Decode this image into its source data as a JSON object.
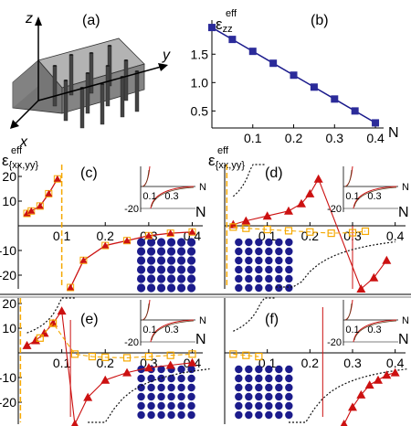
{
  "colors": {
    "axis": "#000000",
    "series_blue": "#1a1a8c",
    "marker_blue": "#2b2b9a",
    "series_red": "#cc1111",
    "series_orange": "#f5a800",
    "dots": "#1c1c8c",
    "block": "#7a7a7a"
  },
  "panel_a": {
    "label": "(a)",
    "axes": {
      "x": "x",
      "y": "y",
      "z": "z"
    }
  },
  "chart_data": [
    {
      "panel": "(b)",
      "type": "line",
      "ylabel_main": "ε",
      "ylabel_sub": "zz",
      "ylabel_sup": "eff",
      "xlabel": "N",
      "x": [
        0.0,
        0.05,
        0.1,
        0.15,
        0.2,
        0.25,
        0.3,
        0.35,
        0.4
      ],
      "y": [
        1.97,
        1.76,
        1.55,
        1.34,
        1.13,
        0.92,
        0.71,
        0.5,
        0.29
      ],
      "xticks": [
        "0.1",
        "0.2",
        "0.3",
        "0.4"
      ],
      "yticks": [
        "0.5",
        "1.0",
        "1.5"
      ],
      "xlim": [
        0,
        0.42
      ],
      "ylim": [
        0.2,
        2.1
      ]
    },
    {
      "panel": "(c)",
      "type": "line",
      "ylabel_main": "ε",
      "ylabel_sub": "{xx,yy}",
      "ylabel_sup": "eff",
      "xlabel": "N",
      "xticks": [
        "0.1",
        "0.2",
        "0.3",
        "0.4"
      ],
      "yticks": [
        "20",
        "10",
        "-10",
        "-20"
      ],
      "resonance": 0.1,
      "points": [
        [
          0.02,
          5
        ],
        [
          0.03,
          6
        ],
        [
          0.05,
          8
        ],
        [
          0.07,
          13
        ],
        [
          0.09,
          19
        ],
        [
          0.12,
          -25
        ],
        [
          0.15,
          -14
        ],
        [
          0.2,
          -8
        ],
        [
          0.25,
          -6
        ],
        [
          0.3,
          -4
        ],
        [
          0.35,
          -3
        ],
        [
          0.4,
          -2.5
        ]
      ],
      "inset_xticks": [
        "0.1",
        "0.3"
      ],
      "inset_ytick": "-20",
      "inset_xlabel": "N"
    },
    {
      "panel": "(d)",
      "type": "line",
      "ylabel_main": "ε",
      "ylabel_sub": "{xx,yy}",
      "ylabel_sup": "eff",
      "xlabel": "N",
      "xticks": [
        "0.1",
        "0.2",
        "0.3",
        "0.4"
      ],
      "red_points": [
        [
          0.02,
          0.5
        ],
        [
          0.05,
          2
        ],
        [
          0.1,
          4
        ],
        [
          0.15,
          6
        ],
        [
          0.18,
          9
        ],
        [
          0.2,
          13
        ],
        [
          0.22,
          19
        ],
        [
          0.32,
          -29
        ],
        [
          0.35,
          -21
        ],
        [
          0.38,
          -14
        ]
      ],
      "orange_points": [
        [
          0.02,
          -0.5
        ],
        [
          0.05,
          -1
        ],
        [
          0.1,
          -1.5
        ],
        [
          0.15,
          -2
        ],
        [
          0.2,
          -2.5
        ],
        [
          0.25,
          -3
        ],
        [
          0.3,
          -2.8
        ],
        [
          0.33,
          -2.2
        ]
      ],
      "inset_xticks": [
        "0.1",
        "0.3"
      ],
      "inset_ytick": "-20",
      "inset_xlabel": "N"
    },
    {
      "panel": "(e)",
      "type": "line",
      "ylabel_main": "",
      "xlabel": "N",
      "xticks": [
        "0.1",
        "0.2",
        "0.3",
        "0.4"
      ],
      "yticks": [
        "20",
        "10",
        "-10",
        "-20"
      ],
      "red_points": [
        [
          0.02,
          3
        ],
        [
          0.04,
          5
        ],
        [
          0.06,
          8
        ],
        [
          0.08,
          12
        ],
        [
          0.1,
          17
        ],
        [
          0.13,
          -29
        ],
        [
          0.16,
          -18
        ],
        [
          0.2,
          -11
        ],
        [
          0.25,
          -8
        ],
        [
          0.3,
          -6
        ],
        [
          0.35,
          -5
        ],
        [
          0.4,
          -4
        ]
      ],
      "orange_points": [
        [
          0.05,
          6
        ],
        [
          0.08,
          12
        ],
        [
          0.13,
          -0.5
        ],
        [
          0.17,
          -1.5
        ],
        [
          0.2,
          -1.8
        ],
        [
          0.25,
          -2
        ],
        [
          0.3,
          -1.5
        ],
        [
          0.35,
          -1
        ],
        [
          0.4,
          -0.5
        ]
      ],
      "inset_xticks": [
        "0.1",
        "0.3"
      ],
      "inset_ytick": "-20",
      "inset_xlabel": "N"
    },
    {
      "panel": "(f)",
      "type": "line",
      "ylabel_main": "",
      "xlabel": "N",
      "xticks": [
        "0.1",
        "0.2",
        "0.3",
        "0.4"
      ],
      "red_points": [
        [
          0.28,
          -30
        ],
        [
          0.3,
          -22
        ],
        [
          0.32,
          -17
        ],
        [
          0.34,
          -13
        ],
        [
          0.36,
          -11
        ],
        [
          0.38,
          -9
        ],
        [
          0.4,
          -8
        ]
      ],
      "orange_points": [
        [
          0.02,
          -0.5
        ],
        [
          0.05,
          -1
        ],
        [
          0.08,
          -1.5
        ]
      ],
      "inset_xticks": [
        "0.1",
        "0.3"
      ],
      "inset_ytick": "-20",
      "inset_xlabel": "N"
    }
  ]
}
